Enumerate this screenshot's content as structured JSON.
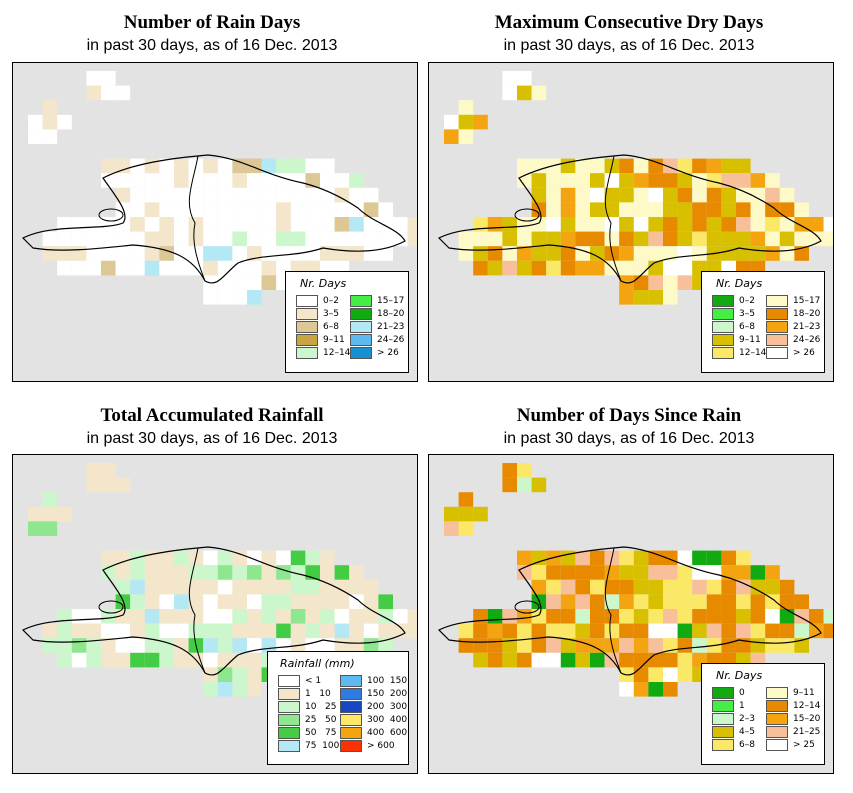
{
  "panels": [
    {
      "id": "rain-days",
      "title": "Number of Rain Days",
      "subtitle": "in past 30 days, as of  16 Dec. 2013",
      "legend": {
        "title": "Nr. Days",
        "items": [
          {
            "label": "0–2",
            "color": "#ffffff"
          },
          {
            "label": "3–5",
            "color": "#f3e6cb"
          },
          {
            "label": "6–8",
            "color": "#ddc795"
          },
          {
            "label": "9–11",
            "color": "#c9a440"
          },
          {
            "label": "12–14",
            "color": "#ccf7cc"
          },
          {
            "label": "15–17",
            "color": "#44ee44"
          },
          {
            "label": "18–20",
            "color": "#11aa11"
          },
          {
            "label": "21–23",
            "color": "#b5e8f5"
          },
          {
            "label": "24–26",
            "color": "#5cbaf0"
          },
          {
            "label": "> 26",
            "color": "#1890d0"
          }
        ]
      }
    },
    {
      "id": "max-dry-days",
      "title": "Maximum Consecutive Dry Days",
      "subtitle": "in past 30 days, as of  16 Dec. 2013",
      "legend": {
        "title": "Nr. Days",
        "items": [
          {
            "label": "0–2",
            "color": "#11aa11"
          },
          {
            "label": "3–5",
            "color": "#44ee44"
          },
          {
            "label": "6–8",
            "color": "#ccf7cc"
          },
          {
            "label": "9–11",
            "color": "#d8c000"
          },
          {
            "label": "12–14",
            "color": "#fbe866"
          },
          {
            "label": "15–17",
            "color": "#fdfac8"
          },
          {
            "label": "18–20",
            "color": "#e88a00"
          },
          {
            "label": "21–23",
            "color": "#f4a410"
          },
          {
            "label": "24–26",
            "color": "#f8c09a"
          },
          {
            "label": "> 26",
            "color": "#ffffff"
          }
        ]
      }
    },
    {
      "id": "total-rainfall",
      "title": "Total Accumulated Rainfall",
      "subtitle": "in past 30 days, as of  16 Dec. 2013",
      "legend": {
        "title": "Rainfall (mm)",
        "items": [
          {
            "label": "< 1",
            "color": "#ffffff"
          },
          {
            "label": "1   10",
            "color": "#f3e6cb"
          },
          {
            "label": "10   25",
            "color": "#ccf7cc"
          },
          {
            "label": "25   50",
            "color": "#8ee68e"
          },
          {
            "label": "50   75",
            "color": "#44cc44"
          },
          {
            "label": "75  100",
            "color": "#b5e8f5"
          },
          {
            "label": "100  150",
            "color": "#5cbaf0"
          },
          {
            "label": "150  200",
            "color": "#2f7ce0"
          },
          {
            "label": "200  300",
            "color": "#1848c0"
          },
          {
            "label": "300  400",
            "color": "#fbe866"
          },
          {
            "label": "400  600",
            "color": "#f4a410"
          },
          {
            "label": "> 600",
            "color": "#ff3000"
          }
        ]
      }
    },
    {
      "id": "days-since-rain",
      "title": "Number of Days Since Rain",
      "subtitle": "in past 30 days, as of  16 Dec. 2013",
      "legend": {
        "title": "Nr. Days",
        "items": [
          {
            "label": "0",
            "color": "#11aa11"
          },
          {
            "label": "1",
            "color": "#44ee44"
          },
          {
            "label": "2–3",
            "color": "#ccf7cc"
          },
          {
            "label": "4–5",
            "color": "#d8c000"
          },
          {
            "label": "6–8",
            "color": "#fbe866"
          },
          {
            "label": "9–11",
            "color": "#fdfac8"
          },
          {
            "label": "12–14",
            "color": "#e88a00"
          },
          {
            "label": "15–20",
            "color": "#f4a410"
          },
          {
            "label": "21–25",
            "color": "#f8c09a"
          },
          {
            "label": "> 25",
            "color": "#ffffff"
          }
        ]
      }
    }
  ]
}
